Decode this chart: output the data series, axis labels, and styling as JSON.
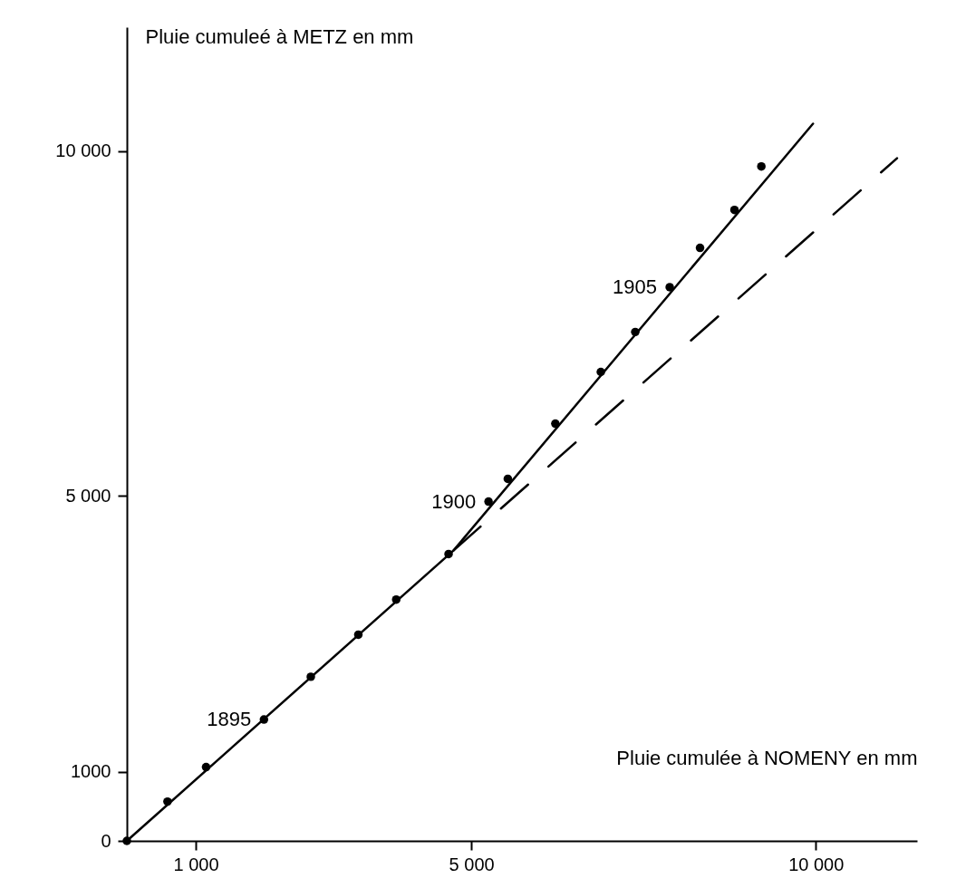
{
  "chart_data": {
    "type": "scatter",
    "xlabel": "Pluie cumulée à NOMENY en mm",
    "ylabel": "Pluie cumuleé à METZ en mm",
    "xlim": [
      0,
      11470
    ],
    "ylim": [
      0,
      11800
    ],
    "xticks": [
      {
        "value": 1000,
        "label": "1 000"
      },
      {
        "value": 5000,
        "label": "5 000"
      },
      {
        "value": 10000,
        "label": "10 000"
      }
    ],
    "yticks": [
      0,
      1000,
      {
        "value": 5000,
        "label": "5 000"
      },
      {
        "value": 10000,
        "label": "10 000"
      }
    ],
    "grid": false,
    "series": [
      {
        "color": "#000000",
        "marker": "circle",
        "x": [
          0,
          590,
          1150,
          1990,
          2670,
          3360,
          3910,
          4670,
          5250,
          5530,
          6220,
          6880,
          7380,
          7880,
          8320,
          8820,
          9210
        ],
        "values": [
          0,
          570,
          1070,
          1760,
          2380,
          2990,
          3500,
          4160,
          4920,
          5250,
          6050,
          6800,
          7380,
          8030,
          8600,
          9150,
          9780
        ]
      },
      {
        "type": "line",
        "color": "#000000",
        "marker": "none",
        "line_style": "solid",
        "x": [
          0,
          4740,
          9960
        ],
        "values": [
          0,
          4210,
          10400
        ]
      },
      {
        "type": "line",
        "color": "#000000",
        "marker": "none",
        "line_style": "dashed",
        "x": [
          4740,
          11180
        ],
        "values": [
          4210,
          9900
        ]
      }
    ],
    "annotations": [
      {
        "text": "1895",
        "x": 1990,
        "y": 1760
      },
      {
        "text": "1900",
        "x": 5250,
        "y": 4920
      },
      {
        "text": "1905",
        "x": 7880,
        "y": 8030
      }
    ]
  }
}
